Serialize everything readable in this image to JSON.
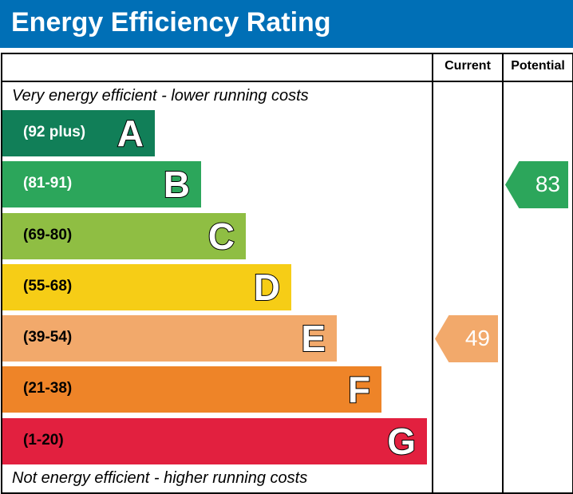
{
  "header": {
    "title": "Energy Efficiency Rating"
  },
  "columns": {
    "current": "Current",
    "potential": "Potential"
  },
  "notes": {
    "top": "Very energy efficient - lower running costs",
    "bottom": "Not energy efficient - higher running costs"
  },
  "chart_data": {
    "type": "bar",
    "bands": [
      {
        "letter": "A",
        "range": "(92 plus)",
        "color": "#117f58",
        "text_color": "#ffffff"
      },
      {
        "letter": "B",
        "range": "(81-91)",
        "color": "#2ca65b",
        "text_color": "#ffffff"
      },
      {
        "letter": "C",
        "range": "(69-80)",
        "color": "#8fbe43",
        "text_color": "#000000"
      },
      {
        "letter": "D",
        "range": "(55-68)",
        "color": "#f6cd16",
        "text_color": "#000000"
      },
      {
        "letter": "E",
        "range": "(39-54)",
        "color": "#f2a96b",
        "text_color": "#000000"
      },
      {
        "letter": "F",
        "range": "(21-38)",
        "color": "#ee8428",
        "text_color": "#000000"
      },
      {
        "letter": "G",
        "range": "(1-20)",
        "color": "#e2203f",
        "text_color": "#000000"
      }
    ],
    "current": {
      "value": 49,
      "band": "E",
      "color": "#f2a96b"
    },
    "potential": {
      "value": 83,
      "band": "B",
      "color": "#2ca65b"
    }
  }
}
